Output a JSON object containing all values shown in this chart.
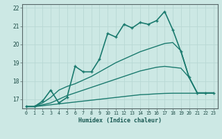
{
  "title": "",
  "xlabel": "Humidex (Indice chaleur)",
  "ylabel": "",
  "bg_color": "#cce8e4",
  "grid_color": "#b8d8d4",
  "line_color": "#1a7a6e",
  "xlim": [
    -0.5,
    23.5
  ],
  "ylim": [
    16.5,
    22.2
  ],
  "yticks": [
    17,
    18,
    19,
    20,
    21,
    22
  ],
  "xticks": [
    0,
    1,
    2,
    3,
    4,
    5,
    6,
    7,
    8,
    9,
    10,
    11,
    12,
    13,
    14,
    15,
    16,
    17,
    18,
    19,
    20,
    21,
    22,
    23
  ],
  "series": [
    {
      "x": [
        0,
        1,
        2,
        3,
        4,
        5,
        6,
        7,
        8,
        9,
        10,
        11,
        12,
        13,
        14,
        15,
        16,
        17,
        18,
        19,
        20,
        21,
        22,
        23
      ],
      "y": [
        16.6,
        16.6,
        16.9,
        17.5,
        16.8,
        17.1,
        18.8,
        18.5,
        18.5,
        19.2,
        20.6,
        20.4,
        21.1,
        20.9,
        21.2,
        21.1,
        21.3,
        21.8,
        20.8,
        19.6,
        18.2,
        17.35,
        17.35,
        17.35
      ],
      "marker": true,
      "lw": 1.2
    },
    {
      "x": [
        0,
        1,
        2,
        3,
        4,
        5,
        6,
        7,
        8,
        9,
        10,
        11,
        12,
        13,
        14,
        15,
        16,
        17,
        18,
        19,
        20,
        21,
        22,
        23
      ],
      "y": [
        16.6,
        16.6,
        16.8,
        17.1,
        17.5,
        17.7,
        17.85,
        18.05,
        18.25,
        18.5,
        18.75,
        19.0,
        19.2,
        19.4,
        19.6,
        19.75,
        19.9,
        20.05,
        20.1,
        19.65,
        18.2,
        17.35,
        17.35,
        17.35
      ],
      "marker": false,
      "lw": 1.0
    },
    {
      "x": [
        0,
        1,
        2,
        3,
        4,
        5,
        6,
        7,
        8,
        9,
        10,
        11,
        12,
        13,
        14,
        15,
        16,
        17,
        18,
        19,
        20,
        21,
        22,
        23
      ],
      "y": [
        16.6,
        16.6,
        16.7,
        16.8,
        17.0,
        17.2,
        17.35,
        17.5,
        17.65,
        17.8,
        17.95,
        18.1,
        18.25,
        18.4,
        18.55,
        18.65,
        18.75,
        18.8,
        18.75,
        18.7,
        18.2,
        17.35,
        17.35,
        17.35
      ],
      "marker": false,
      "lw": 1.0
    },
    {
      "x": [
        0,
        1,
        2,
        3,
        4,
        5,
        6,
        7,
        8,
        9,
        10,
        11,
        12,
        13,
        14,
        15,
        16,
        17,
        18,
        19,
        20,
        21,
        22,
        23
      ],
      "y": [
        16.6,
        16.6,
        16.65,
        16.7,
        16.75,
        16.8,
        16.85,
        16.9,
        16.95,
        17.0,
        17.05,
        17.1,
        17.15,
        17.2,
        17.25,
        17.27,
        17.3,
        17.32,
        17.33,
        17.33,
        17.33,
        17.33,
        17.33,
        17.33
      ],
      "marker": false,
      "lw": 1.0
    }
  ]
}
